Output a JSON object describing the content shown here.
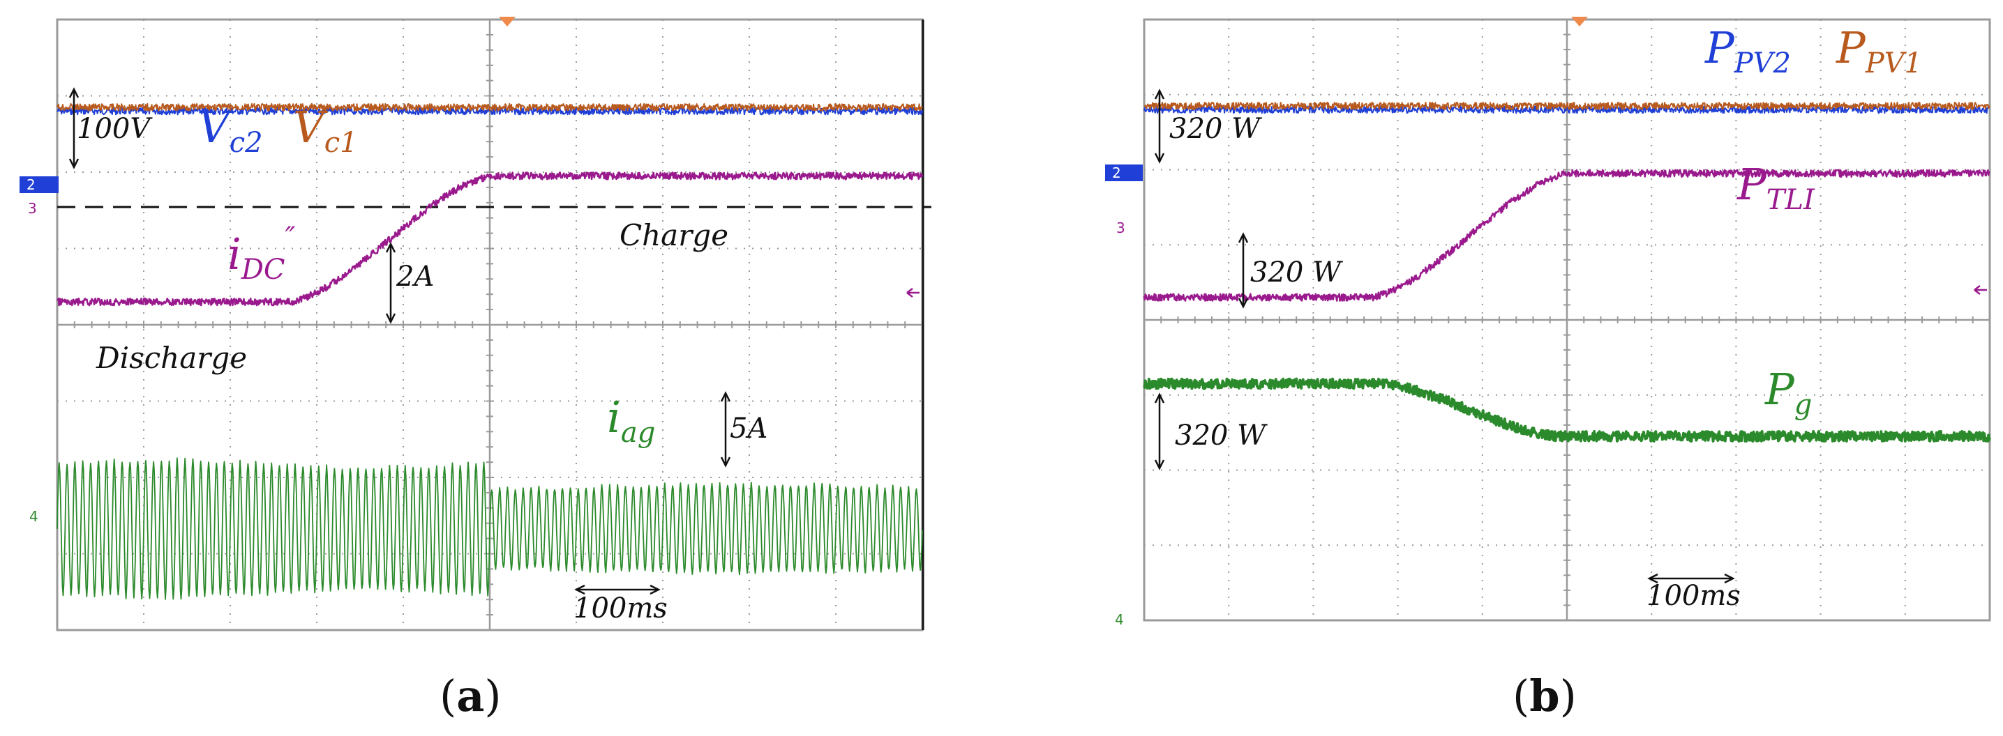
{
  "colors": {
    "blue": "#1f3fd6",
    "brown": "#b85a1e",
    "magenta": "#9a1a8e",
    "green": "#2b8a2b",
    "ch2_marker": "#1f3fd6",
    "ch3_marker": "#9a1a8e",
    "ch4_marker": "#2b8a2b",
    "trigger_marker": "#f08a4b"
  },
  "chart_data": [
    {
      "type": "line",
      "panel": "a",
      "panel_label": "a",
      "time_scale_label": "100ms",
      "time_divisions": 10,
      "voltage_divisions": 8,
      "markers": {
        "ch2": "2",
        "ch3": "3",
        "ch4": "4"
      },
      "series": [
        {
          "name": "V_c2",
          "label_main": "V",
          "label_sub": "c2",
          "color_key": "blue",
          "shape": "flat",
          "level_div": 6.8
        },
        {
          "name": "V_c1",
          "label_main": "V",
          "label_sub": "c1",
          "color_key": "brown",
          "shape": "flat",
          "level_div": 6.85
        },
        {
          "name": "i_DC''",
          "label_main": "i",
          "label_sub": "DC",
          "label_sup": "″",
          "color_key": "magenta",
          "shape": "ramp_up",
          "start_div": 0.0,
          "end_div": 5.0,
          "level_start_div": 4.3,
          "level_end_div": 5.95
        },
        {
          "name": "i_ag",
          "label_main": "i",
          "label_sub": "ag",
          "color_key": "green",
          "shape": "sine",
          "center_div": 1.33,
          "amplitude_start_div": 0.85,
          "amplitude_end_div": 0.55,
          "cycles": 110
        }
      ],
      "annotations": {
        "scale_top": "100V",
        "scale_mid": "2A",
        "scale_bottom": "5A",
        "region_left": "Discharge",
        "region_right": "Charge",
        "threshold_line": "dashed"
      }
    },
    {
      "type": "line",
      "panel": "b",
      "panel_label": "b",
      "time_scale_label": "100ms",
      "time_divisions": 10,
      "voltage_divisions": 8,
      "markers": {
        "ch2": "2",
        "ch3": "3",
        "ch4": "4"
      },
      "series": [
        {
          "name": "P_PV2",
          "label_main": "P",
          "label_sub": "PV2",
          "color_key": "blue",
          "shape": "flat",
          "level_div": 6.8
        },
        {
          "name": "P_PV1",
          "label_main": "P",
          "label_sub": "PV1",
          "color_key": "brown",
          "shape": "flat",
          "level_div": 6.85
        },
        {
          "name": "P_TLI",
          "label_main": "P",
          "label_sub": "TLI",
          "color_key": "magenta",
          "shape": "ramp_up",
          "start_div": 0.0,
          "end_div": 5.0,
          "level_start_div": 4.3,
          "level_end_div": 5.95
        },
        {
          "name": "P_g",
          "label_main": "P",
          "label_sub": "g",
          "color_key": "green",
          "shape": "ramp_down",
          "start_div": 0.0,
          "end_div": 5.0,
          "level_start_div": 3.15,
          "level_end_div": 2.45
        }
      ],
      "annotations": {
        "scale_top": "320 W",
        "scale_mid": "320 W",
        "scale_bottom": "320 W"
      }
    }
  ]
}
